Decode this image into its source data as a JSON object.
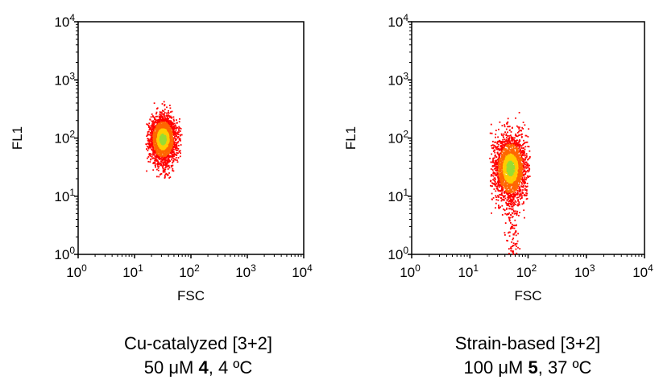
{
  "chart_data": [
    {
      "type": "scatter",
      "subtype": "flow-cytometry-density-dot-plot",
      "xlabel": "FSC",
      "ylabel": "FL1",
      "x_scale": "log",
      "y_scale": "log",
      "xlim": [
        1,
        10000
      ],
      "ylim": [
        1,
        10000
      ],
      "x_ticks": [
        {
          "base": "10",
          "exp": "0"
        },
        {
          "base": "10",
          "exp": "1"
        },
        {
          "base": "10",
          "exp": "2"
        },
        {
          "base": "10",
          "exp": "3"
        },
        {
          "base": "10",
          "exp": "4"
        }
      ],
      "y_ticks": [
        {
          "base": "10",
          "exp": "0"
        },
        {
          "base": "10",
          "exp": "1"
        },
        {
          "base": "10",
          "exp": "2"
        },
        {
          "base": "10",
          "exp": "3"
        },
        {
          "base": "10",
          "exp": "4"
        }
      ],
      "grid": false,
      "population": {
        "center_x": 32,
        "center_y": 95,
        "spread_log_x": 0.12,
        "spread_log_y": 0.2,
        "x_range": [
          16,
          70
        ],
        "y_range": [
          20,
          1100
        ],
        "tail": {
          "x_center": 34,
          "y_range": [
            1,
            50
          ],
          "fraction": 0.05
        }
      },
      "density_colors": [
        "#ff0000",
        "#ff6600",
        "#ffcc00",
        "#99dd33"
      ],
      "caption_line1": "Cu-catalyzed [3+2]",
      "caption_line2": {
        "conc": "50 μM ",
        "compound": "4",
        "temp": ", 4 ºC"
      }
    },
    {
      "type": "scatter",
      "subtype": "flow-cytometry-density-dot-plot",
      "xlabel": "FSC",
      "ylabel": "FL1",
      "x_scale": "log",
      "y_scale": "log",
      "xlim": [
        1,
        10000
      ],
      "ylim": [
        1,
        10000
      ],
      "x_ticks": [
        {
          "base": "10",
          "exp": "0"
        },
        {
          "base": "10",
          "exp": "1"
        },
        {
          "base": "10",
          "exp": "2"
        },
        {
          "base": "10",
          "exp": "3"
        },
        {
          "base": "10",
          "exp": "4"
        }
      ],
      "y_ticks": [
        {
          "base": "10",
          "exp": "0"
        },
        {
          "base": "10",
          "exp": "1"
        },
        {
          "base": "10",
          "exp": "2"
        },
        {
          "base": "10",
          "exp": "3"
        },
        {
          "base": "10",
          "exp": "4"
        }
      ],
      "grid": false,
      "population": {
        "center_x": 50,
        "center_y": 30,
        "spread_log_x": 0.14,
        "spread_log_y": 0.28,
        "x_range": [
          22,
          110
        ],
        "y_range": [
          1,
          1500
        ],
        "tail": {
          "x_center": 55,
          "y_range": [
            1,
            8
          ],
          "fraction": 0.04
        }
      },
      "density_colors": [
        "#ff0000",
        "#ff6600",
        "#ffcc00",
        "#99dd33"
      ],
      "caption_line1": "Strain-based [3+2]",
      "caption_line2": {
        "conc": "100 μM ",
        "compound": "5",
        "temp": ", 37 ºC"
      }
    }
  ]
}
